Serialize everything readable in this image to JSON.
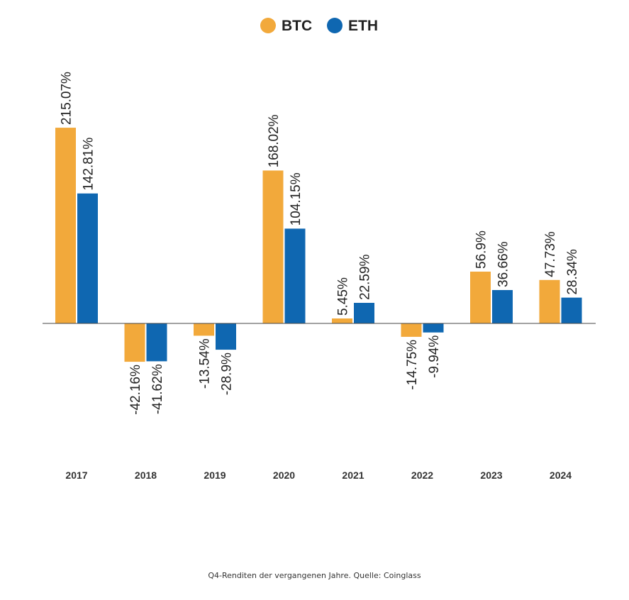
{
  "legend": [
    {
      "name": "BTC",
      "color": "#f2a93b",
      "icon": "legend-dot"
    },
    {
      "name": "ETH",
      "color": "#0f67b1",
      "icon": "legend-dot"
    }
  ],
  "caption": "Q4-Renditen der vergangenen Jahre. Quelle: Coinglass",
  "chart_data": {
    "type": "bar",
    "categories": [
      "2017",
      "2018",
      "2019",
      "2020",
      "2021",
      "2022",
      "2023",
      "2024"
    ],
    "series": [
      {
        "name": "BTC",
        "color": "#f2a93b",
        "values": [
          215.07,
          -42.16,
          -13.54,
          168.02,
          5.45,
          -14.75,
          56.9,
          47.73
        ],
        "labels": [
          "215.07%",
          "-42.16%",
          "-13.54%",
          "168.02%",
          "5.45%",
          "-14.75%",
          "56.9%",
          "47.73%"
        ]
      },
      {
        "name": "ETH",
        "color": "#0f67b1",
        "values": [
          142.81,
          -41.62,
          -28.9,
          104.15,
          22.59,
          -9.94,
          36.66,
          28.34
        ],
        "labels": [
          "142.81%",
          "-41.62%",
          "-28.9%",
          "104.15%",
          "22.59%",
          "-9.94%",
          "36.66%",
          "28.34%"
        ]
      }
    ],
    "unit": "%",
    "ylim": [
      -160,
      270
    ],
    "grid": false,
    "legend_position": "top-center",
    "data_labels": "rotated -90"
  }
}
